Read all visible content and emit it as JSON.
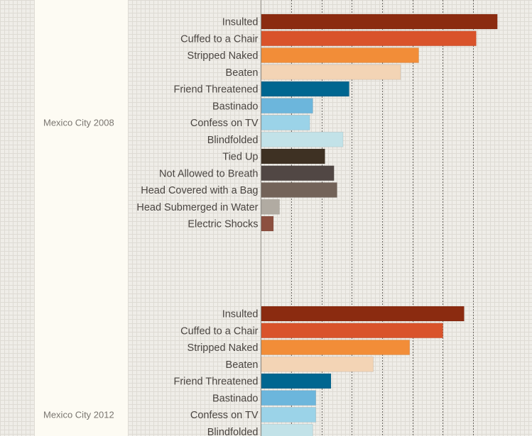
{
  "chart_data": {
    "type": "bar",
    "orientation": "horizontal",
    "title": "",
    "xlabel": "",
    "ylabel": "",
    "xlim": [
      0,
      100
    ],
    "grid_step": 10,
    "grid": true,
    "unit": "percent (estimated from gridlines; no tick labels shown)",
    "categories": [
      "Insulted",
      "Cuffed to a Chair",
      "Stripped Naked",
      "Beaten",
      "Friend Threatened",
      "Bastinado",
      "Confess on TV",
      "Blindfolded",
      "Tied Up",
      "Not Allowed to Breath",
      "Head Covered with a Bag",
      "Head Submerged in Water",
      "Electric Shocks"
    ],
    "colors": [
      "#8b2b10",
      "#d9532b",
      "#f28d38",
      "#f3d4b5",
      "#006690",
      "#6cb6dc",
      "#9bd3e8",
      "#c2e2e8",
      "#3e3123",
      "#514744",
      "#736359",
      "#b1aba2",
      "#8c5040"
    ],
    "groups": [
      {
        "name": "Mexico City 2008",
        "values": [
          78,
          71,
          52,
          46,
          29,
          17,
          16,
          27,
          21,
          24,
          25,
          6,
          4
        ]
      },
      {
        "name": "Mexico City 2012",
        "values": [
          67,
          60,
          49,
          37,
          23,
          18,
          18,
          17
        ],
        "note": "remaining categories cut off below visible area"
      }
    ]
  }
}
